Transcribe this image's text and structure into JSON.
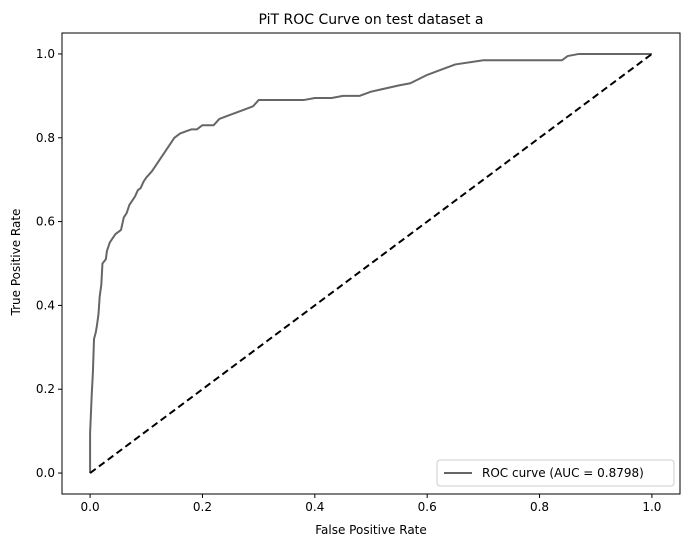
{
  "chart_data": {
    "type": "line",
    "title": "PiT ROC Curve on test dataset a",
    "xlabel": "False Positive Rate",
    "ylabel": "True Positive Rate",
    "xlim": [
      -0.05,
      1.05
    ],
    "ylim": [
      -0.05,
      1.05
    ],
    "xticks": [
      0.0,
      0.2,
      0.4,
      0.6,
      0.8,
      1.0
    ],
    "yticks": [
      0.0,
      0.2,
      0.4,
      0.6,
      0.8,
      1.0
    ],
    "xtick_labels": [
      "0.0",
      "0.2",
      "0.4",
      "0.6",
      "0.8",
      "1.0"
    ],
    "ytick_labels": [
      "0.0",
      "0.2",
      "0.4",
      "0.6",
      "0.8",
      "1.0"
    ],
    "grid": false,
    "legend_position": "lower-right",
    "series": [
      {
        "name": "ROC curve (AUC = 0.8798)",
        "color": "#666666",
        "style": "solid",
        "x": [
          0.0,
          0.0,
          0.003,
          0.005,
          0.007,
          0.01,
          0.012,
          0.015,
          0.017,
          0.02,
          0.022,
          0.025,
          0.028,
          0.03,
          0.035,
          0.04,
          0.045,
          0.05,
          0.055,
          0.06,
          0.065,
          0.07,
          0.075,
          0.08,
          0.085,
          0.09,
          0.095,
          0.1,
          0.11,
          0.12,
          0.13,
          0.14,
          0.15,
          0.16,
          0.17,
          0.18,
          0.19,
          0.2,
          0.22,
          0.23,
          0.25,
          0.27,
          0.29,
          0.3,
          0.33,
          0.35,
          0.38,
          0.4,
          0.43,
          0.45,
          0.48,
          0.5,
          0.55,
          0.57,
          0.6,
          0.62,
          0.65,
          0.7,
          0.8,
          0.84,
          0.85,
          0.87,
          0.9,
          0.95,
          1.0
        ],
        "y": [
          0.0,
          0.095,
          0.19,
          0.24,
          0.32,
          0.335,
          0.35,
          0.38,
          0.42,
          0.45,
          0.5,
          0.505,
          0.51,
          0.53,
          0.55,
          0.56,
          0.57,
          0.575,
          0.58,
          0.61,
          0.62,
          0.64,
          0.65,
          0.66,
          0.675,
          0.68,
          0.695,
          0.705,
          0.72,
          0.74,
          0.76,
          0.78,
          0.8,
          0.81,
          0.815,
          0.82,
          0.82,
          0.83,
          0.83,
          0.845,
          0.855,
          0.865,
          0.875,
          0.89,
          0.89,
          0.89,
          0.89,
          0.895,
          0.895,
          0.9,
          0.9,
          0.91,
          0.925,
          0.93,
          0.95,
          0.96,
          0.975,
          0.985,
          0.985,
          0.985,
          0.995,
          1.0,
          1.0,
          1.0,
          1.0
        ]
      },
      {
        "name": "",
        "color": "#000000",
        "style": "dashed",
        "x": [
          0.0,
          1.0
        ],
        "y": [
          0.0,
          1.0
        ]
      }
    ]
  }
}
